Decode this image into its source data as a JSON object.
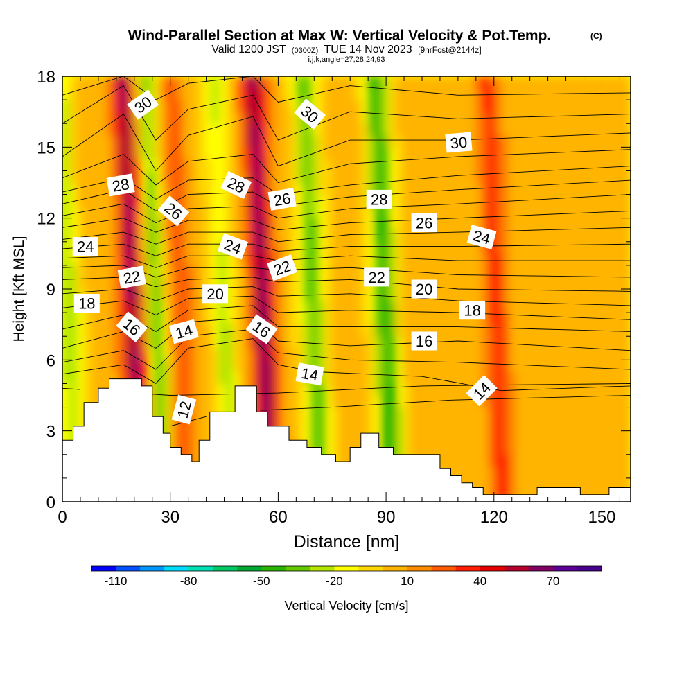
{
  "header": {
    "title": "Wind-Parallel Section at Max W: Vertical Velocity & Pot.Temp.",
    "copyright": "(C)",
    "valid_prefix": "Valid 1200 JST",
    "valid_utc": "(0300Z)",
    "valid_day": "TUE 14 Nov 2023",
    "forecast": "[9hrFcst@2144z]",
    "index_line": "i,j,k,angle=27,28,24,93"
  },
  "chart_data": {
    "type": "heatmap",
    "xlabel": "Distance [nm]",
    "ylabel": "Height [Kft MSL]",
    "xlim": [
      0,
      158
    ],
    "ylim": [
      0,
      18
    ],
    "x_ticks": [
      0,
      30,
      60,
      90,
      120,
      150
    ],
    "y_ticks": [
      0,
      3,
      6,
      9,
      12,
      15,
      18
    ],
    "colorbar": {
      "label": "Vertical Velocity [cm/s]",
      "tick_labels": [
        -110,
        -80,
        -50,
        -20,
        10,
        40,
        70
      ],
      "range": [
        -120,
        90
      ],
      "interval": 10,
      "colors": [
        "#0000ff",
        "#0050ff",
        "#0096ff",
        "#00dcff",
        "#00e0b4",
        "#00c864",
        "#00a832",
        "#28b400",
        "#64c800",
        "#b4e600",
        "#ffff00",
        "#ffd700",
        "#ffb400",
        "#ff8c00",
        "#ff5a00",
        "#ff1e00",
        "#e60000",
        "#b4002d",
        "#820064",
        "#5a0096",
        "#46008c"
      ]
    },
    "w_features": [
      {
        "x_nm": 3,
        "sign": "down",
        "peak_cm_s": -30
      },
      {
        "x_nm": 21,
        "sign": "up",
        "peak_cm_s": 60
      },
      {
        "x_nm": 27,
        "sign": "down",
        "peak_cm_s": -40
      },
      {
        "x_nm": 34,
        "sign": "up",
        "peak_cm_s": 25
      },
      {
        "x_nm": 46,
        "sign": "down",
        "peak_cm_s": -25
      },
      {
        "x_nm": 57,
        "sign": "up",
        "peak_cm_s": 60
      },
      {
        "x_nm": 71,
        "sign": "down",
        "peak_cm_s": -40
      },
      {
        "x_nm": 91,
        "sign": "down",
        "peak_cm_s": -50
      },
      {
        "x_nm": 122,
        "sign": "up",
        "peak_cm_s": 30
      }
    ],
    "terrain": [
      {
        "x": 0,
        "h": 2.6
      },
      {
        "x": 3,
        "h": 3.2
      },
      {
        "x": 6,
        "h": 4.2
      },
      {
        "x": 10,
        "h": 4.8
      },
      {
        "x": 13,
        "h": 5.2
      },
      {
        "x": 22,
        "h": 4.9
      },
      {
        "x": 25,
        "h": 3.6
      },
      {
        "x": 28,
        "h": 2.9
      },
      {
        "x": 30,
        "h": 2.3
      },
      {
        "x": 33,
        "h": 2.0
      },
      {
        "x": 36,
        "h": 1.7
      },
      {
        "x": 38,
        "h": 2.6
      },
      {
        "x": 41,
        "h": 3.8
      },
      {
        "x": 45,
        "h": 3.8
      },
      {
        "x": 48,
        "h": 4.9
      },
      {
        "x": 54,
        "h": 3.8
      },
      {
        "x": 57,
        "h": 3.2
      },
      {
        "x": 63,
        "h": 2.6
      },
      {
        "x": 68,
        "h": 2.3
      },
      {
        "x": 72,
        "h": 2.0
      },
      {
        "x": 76,
        "h": 1.7
      },
      {
        "x": 80,
        "h": 2.3
      },
      {
        "x": 83,
        "h": 2.9
      },
      {
        "x": 88,
        "h": 2.3
      },
      {
        "x": 92,
        "h": 2.0
      },
      {
        "x": 96,
        "h": 2.0
      },
      {
        "x": 105,
        "h": 1.4
      },
      {
        "x": 108,
        "h": 1.1
      },
      {
        "x": 111,
        "h": 0.8
      },
      {
        "x": 114,
        "h": 0.6
      },
      {
        "x": 117,
        "h": 0.3
      },
      {
        "x": 125,
        "h": 0.3
      },
      {
        "x": 132,
        "h": 0.6
      },
      {
        "x": 144,
        "h": 0.3
      },
      {
        "x": 152,
        "h": 0.6
      },
      {
        "x": 158,
        "h": 0.6
      }
    ],
    "theta_contours": [
      {
        "level": 12,
        "anchors": [
          [
            30,
            3.2
          ],
          [
            45,
            3.8
          ],
          [
            75,
            4.0
          ],
          [
            108,
            4.3
          ],
          [
            158,
            4.5
          ]
        ]
      },
      {
        "level": 13,
        "anchors": [
          [
            0,
            4.8
          ],
          [
            30,
            4.5
          ],
          [
            60,
            4.6
          ],
          [
            100,
            4.9
          ],
          [
            158,
            5.0
          ]
        ]
      },
      {
        "level": 14,
        "anchors": [
          [
            0,
            5.4
          ],
          [
            17,
            5.8
          ],
          [
            26,
            5.0
          ],
          [
            35,
            6.5
          ],
          [
            53,
            6.9
          ],
          [
            60,
            5.8
          ],
          [
            70,
            5.5
          ],
          [
            100,
            5.3
          ],
          [
            122,
            4.7
          ],
          [
            158,
            4.9
          ]
        ]
      },
      {
        "level": 15,
        "anchors": [
          [
            0,
            5.9
          ],
          [
            17,
            6.4
          ],
          [
            26,
            5.6
          ],
          [
            35,
            7.0
          ],
          [
            53,
            7.3
          ],
          [
            60,
            6.3
          ],
          [
            80,
            6.0
          ],
          [
            110,
            5.9
          ],
          [
            158,
            5.6
          ]
        ]
      },
      {
        "level": 16,
        "anchors": [
          [
            0,
            6.5
          ],
          [
            17,
            7.2
          ],
          [
            26,
            6.5
          ],
          [
            35,
            7.6
          ],
          [
            53,
            7.8
          ],
          [
            60,
            6.8
          ],
          [
            80,
            6.6
          ],
          [
            110,
            6.8
          ],
          [
            158,
            6.4
          ]
        ]
      },
      {
        "level": 17,
        "anchors": [
          [
            0,
            7.3
          ],
          [
            17,
            7.9
          ],
          [
            26,
            7.2
          ],
          [
            35,
            8.1
          ],
          [
            53,
            8.3
          ],
          [
            60,
            7.4
          ],
          [
            80,
            7.4
          ],
          [
            110,
            7.4
          ],
          [
            158,
            7.2
          ]
        ]
      },
      {
        "level": 18,
        "anchors": [
          [
            0,
            8.2
          ],
          [
            17,
            8.5
          ],
          [
            26,
            7.9
          ],
          [
            35,
            8.6
          ],
          [
            53,
            8.7
          ],
          [
            60,
            8.0
          ],
          [
            80,
            8.1
          ],
          [
            110,
            8.0
          ],
          [
            158,
            7.7
          ]
        ]
      },
      {
        "level": 19,
        "anchors": [
          [
            0,
            8.8
          ],
          [
            17,
            9.0
          ],
          [
            26,
            8.5
          ],
          [
            35,
            9.0
          ],
          [
            53,
            9.1
          ],
          [
            60,
            8.7
          ],
          [
            80,
            8.8
          ],
          [
            110,
            8.5
          ],
          [
            158,
            8.3
          ]
        ]
      },
      {
        "level": 20,
        "anchors": [
          [
            0,
            9.4
          ],
          [
            17,
            9.5
          ],
          [
            26,
            9.1
          ],
          [
            35,
            9.4
          ],
          [
            53,
            9.5
          ],
          [
            60,
            9.3
          ],
          [
            80,
            9.4
          ],
          [
            110,
            9.0
          ],
          [
            158,
            8.9
          ]
        ]
      },
      {
        "level": 21,
        "anchors": [
          [
            0,
            9.9
          ],
          [
            17,
            10.0
          ],
          [
            26,
            9.5
          ],
          [
            35,
            9.9
          ],
          [
            53,
            9.9
          ],
          [
            60,
            9.8
          ],
          [
            80,
            9.9
          ],
          [
            110,
            9.6
          ],
          [
            158,
            9.5
          ]
        ]
      },
      {
        "level": 22,
        "anchors": [
          [
            0,
            10.3
          ],
          [
            17,
            10.4
          ],
          [
            26,
            9.9
          ],
          [
            35,
            10.4
          ],
          [
            53,
            10.4
          ],
          [
            60,
            10.2
          ],
          [
            80,
            10.4
          ],
          [
            110,
            10.2
          ],
          [
            158,
            10.2
          ]
        ]
      },
      {
        "level": 23,
        "anchors": [
          [
            0,
            10.7
          ],
          [
            17,
            10.9
          ],
          [
            26,
            10.4
          ],
          [
            35,
            10.9
          ],
          [
            53,
            10.9
          ],
          [
            60,
            10.6
          ],
          [
            80,
            10.8
          ],
          [
            110,
            10.8
          ],
          [
            158,
            10.9
          ]
        ]
      },
      {
        "level": 24,
        "anchors": [
          [
            0,
            11.1
          ],
          [
            17,
            11.4
          ],
          [
            26,
            10.9
          ],
          [
            35,
            11.4
          ],
          [
            53,
            11.4
          ],
          [
            60,
            11.0
          ],
          [
            80,
            11.3
          ],
          [
            110,
            11.4
          ],
          [
            158,
            11.6
          ]
        ]
      },
      {
        "level": 25,
        "anchors": [
          [
            0,
            11.6
          ],
          [
            17,
            12.0
          ],
          [
            26,
            11.4
          ],
          [
            35,
            11.9
          ],
          [
            53,
            11.9
          ],
          [
            60,
            11.5
          ],
          [
            80,
            11.8
          ],
          [
            110,
            12.0
          ],
          [
            158,
            12.3
          ]
        ]
      },
      {
        "level": 26,
        "anchors": [
          [
            0,
            12.1
          ],
          [
            17,
            12.6
          ],
          [
            26,
            11.8
          ],
          [
            35,
            12.4
          ],
          [
            53,
            12.5
          ],
          [
            60,
            12.0
          ],
          [
            80,
            12.4
          ],
          [
            110,
            12.6
          ],
          [
            158,
            13.0
          ]
        ]
      },
      {
        "level": 27,
        "anchors": [
          [
            0,
            12.6
          ],
          [
            17,
            13.2
          ],
          [
            26,
            12.3
          ],
          [
            35,
            13.0
          ],
          [
            53,
            13.1
          ],
          [
            60,
            12.5
          ],
          [
            80,
            12.9
          ],
          [
            110,
            13.2
          ],
          [
            158,
            13.6
          ]
        ]
      },
      {
        "level": 28,
        "anchors": [
          [
            0,
            13.1
          ],
          [
            17,
            13.7
          ],
          [
            26,
            12.8
          ],
          [
            35,
            13.6
          ],
          [
            53,
            13.7
          ],
          [
            60,
            13.0
          ],
          [
            80,
            13.4
          ],
          [
            110,
            13.8
          ],
          [
            158,
            14.2
          ]
        ]
      },
      {
        "level": 29,
        "anchors": [
          [
            0,
            13.7
          ],
          [
            17,
            14.7
          ],
          [
            26,
            13.4
          ],
          [
            35,
            14.4
          ],
          [
            53,
            14.7
          ],
          [
            60,
            13.5
          ],
          [
            80,
            14.3
          ],
          [
            110,
            14.6
          ],
          [
            158,
            14.9
          ]
        ]
      },
      {
        "level": 30,
        "anchors": [
          [
            0,
            14.6
          ],
          [
            17,
            16.4
          ],
          [
            26,
            14.0
          ],
          [
            35,
            15.5
          ],
          [
            53,
            16.3
          ],
          [
            60,
            14.2
          ],
          [
            80,
            15.3
          ],
          [
            110,
            15.3
          ],
          [
            158,
            15.6
          ]
        ]
      },
      {
        "level": 31,
        "anchors": [
          [
            0,
            16.0
          ],
          [
            17,
            17.6
          ],
          [
            26,
            15.3
          ],
          [
            35,
            16.6
          ],
          [
            53,
            17.2
          ],
          [
            60,
            15.3
          ],
          [
            80,
            16.5
          ],
          [
            110,
            16.2
          ],
          [
            158,
            16.4
          ]
        ]
      },
      {
        "level": 32,
        "anchors": [
          [
            0,
            17.2
          ],
          [
            17,
            18.0
          ],
          [
            26,
            17.0
          ],
          [
            35,
            17.7
          ],
          [
            53,
            18.0
          ],
          [
            60,
            16.9
          ],
          [
            80,
            17.6
          ],
          [
            110,
            17.2
          ],
          [
            158,
            17.3
          ]
        ]
      }
    ],
    "contour_labels": [
      {
        "text": "30",
        "x_nm": 22.4,
        "y_kft": 16.8,
        "angle": -35
      },
      {
        "text": "28",
        "x_nm": 16.2,
        "y_kft": 13.4,
        "angle": -10
      },
      {
        "text": "26",
        "x_nm": 30.9,
        "y_kft": 12.3,
        "angle": 40
      },
      {
        "text": "24",
        "x_nm": 6.4,
        "y_kft": 10.8,
        "angle": 0
      },
      {
        "text": "22",
        "x_nm": 19.3,
        "y_kft": 9.5,
        "angle": -10
      },
      {
        "text": "18",
        "x_nm": 6.8,
        "y_kft": 8.4,
        "angle": 0
      },
      {
        "text": "16",
        "x_nm": 19.3,
        "y_kft": 7.4,
        "angle": 40
      },
      {
        "text": "14",
        "x_nm": 33.8,
        "y_kft": 7.2,
        "angle": -15
      },
      {
        "text": "12",
        "x_nm": 33.8,
        "y_kft": 3.9,
        "angle": -75
      },
      {
        "text": "28",
        "x_nm": 48.3,
        "y_kft": 13.4,
        "angle": 25
      },
      {
        "text": "24",
        "x_nm": 47.4,
        "y_kft": 10.8,
        "angle": 20
      },
      {
        "text": "20",
        "x_nm": 42.5,
        "y_kft": 8.8,
        "angle": 0
      },
      {
        "text": "30",
        "x_nm": 68.8,
        "y_kft": 16.4,
        "angle": 40
      },
      {
        "text": "26",
        "x_nm": 61.1,
        "y_kft": 12.8,
        "angle": -10
      },
      {
        "text": "22",
        "x_nm": 61.1,
        "y_kft": 9.9,
        "angle": -20
      },
      {
        "text": "16",
        "x_nm": 55.4,
        "y_kft": 7.3,
        "angle": 35
      },
      {
        "text": "14",
        "x_nm": 68.8,
        "y_kft": 5.4,
        "angle": 10
      },
      {
        "text": "28",
        "x_nm": 88.1,
        "y_kft": 12.8,
        "angle": 0
      },
      {
        "text": "22",
        "x_nm": 87.4,
        "y_kft": 9.5,
        "angle": 0
      },
      {
        "text": "30",
        "x_nm": 110.2,
        "y_kft": 15.2,
        "angle": -5
      },
      {
        "text": "26",
        "x_nm": 100.6,
        "y_kft": 11.8,
        "angle": 0
      },
      {
        "text": "20",
        "x_nm": 100.6,
        "y_kft": 9.0,
        "angle": 0
      },
      {
        "text": "16",
        "x_nm": 100.6,
        "y_kft": 6.8,
        "angle": 0
      },
      {
        "text": "24",
        "x_nm": 116.6,
        "y_kft": 11.2,
        "angle": 15
      },
      {
        "text": "18",
        "x_nm": 114.0,
        "y_kft": 8.1,
        "angle": 0
      },
      {
        "text": "14",
        "x_nm": 116.6,
        "y_kft": 4.7,
        "angle": -45
      }
    ]
  }
}
